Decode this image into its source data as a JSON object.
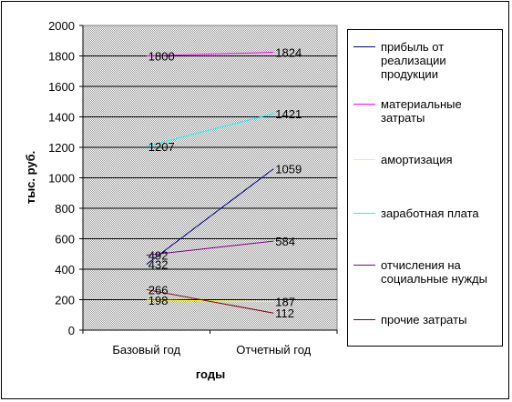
{
  "chart_data": {
    "type": "line",
    "categories": [
      "Базовый год",
      "Отчетный год"
    ],
    "ylabel": "тыс. руб.",
    "xlabel": "годы",
    "ylim": [
      0,
      2000
    ],
    "yticks": [
      "0",
      "200",
      "400",
      "600",
      "800",
      "1000",
      "1200",
      "1400",
      "1600",
      "1800",
      "2000"
    ],
    "grid": true,
    "legend_position": "right",
    "series": [
      {
        "name": "прибыль от реализации продукции",
        "values": [
          432,
          1059
        ],
        "labels": [
          "432",
          "1059"
        ],
        "color": "#000080"
      },
      {
        "name": "материальные затраты",
        "values": [
          1800,
          1824
        ],
        "labels": [
          "1800",
          "1824"
        ],
        "color": "#ff00ff"
      },
      {
        "name": "амортизация",
        "values": [
          198,
          187
        ],
        "labels": [
          "198",
          "187"
        ],
        "color": "#ffff00"
      },
      {
        "name": "заработная плата",
        "values": [
          1207,
          1421
        ],
        "labels": [
          "1207",
          "1421"
        ],
        "color": "#00ffff"
      },
      {
        "name": "отчисления на социальные нужды",
        "values": [
          492,
          584
        ],
        "labels": [
          "492",
          "584"
        ],
        "color": "#800080"
      },
      {
        "name": "прочие затраты",
        "values": [
          266,
          112
        ],
        "labels": [
          "266",
          "112"
        ],
        "color": "#800000"
      }
    ]
  },
  "legend": {
    "items": [
      {
        "lines": [
          "прибыль от",
          "реализации",
          "продукции"
        ]
      },
      {
        "lines": [
          "материальные",
          "затраты"
        ]
      },
      {
        "lines": [
          "амортизация"
        ]
      },
      {
        "lines": [
          "заработная плата"
        ]
      },
      {
        "lines": [
          "отчисления на",
          "социальные нужды"
        ]
      },
      {
        "lines": [
          "прочие затраты"
        ]
      }
    ]
  },
  "colors": {
    "plot_background": "#c0c0c0",
    "gridline": "#000000"
  }
}
